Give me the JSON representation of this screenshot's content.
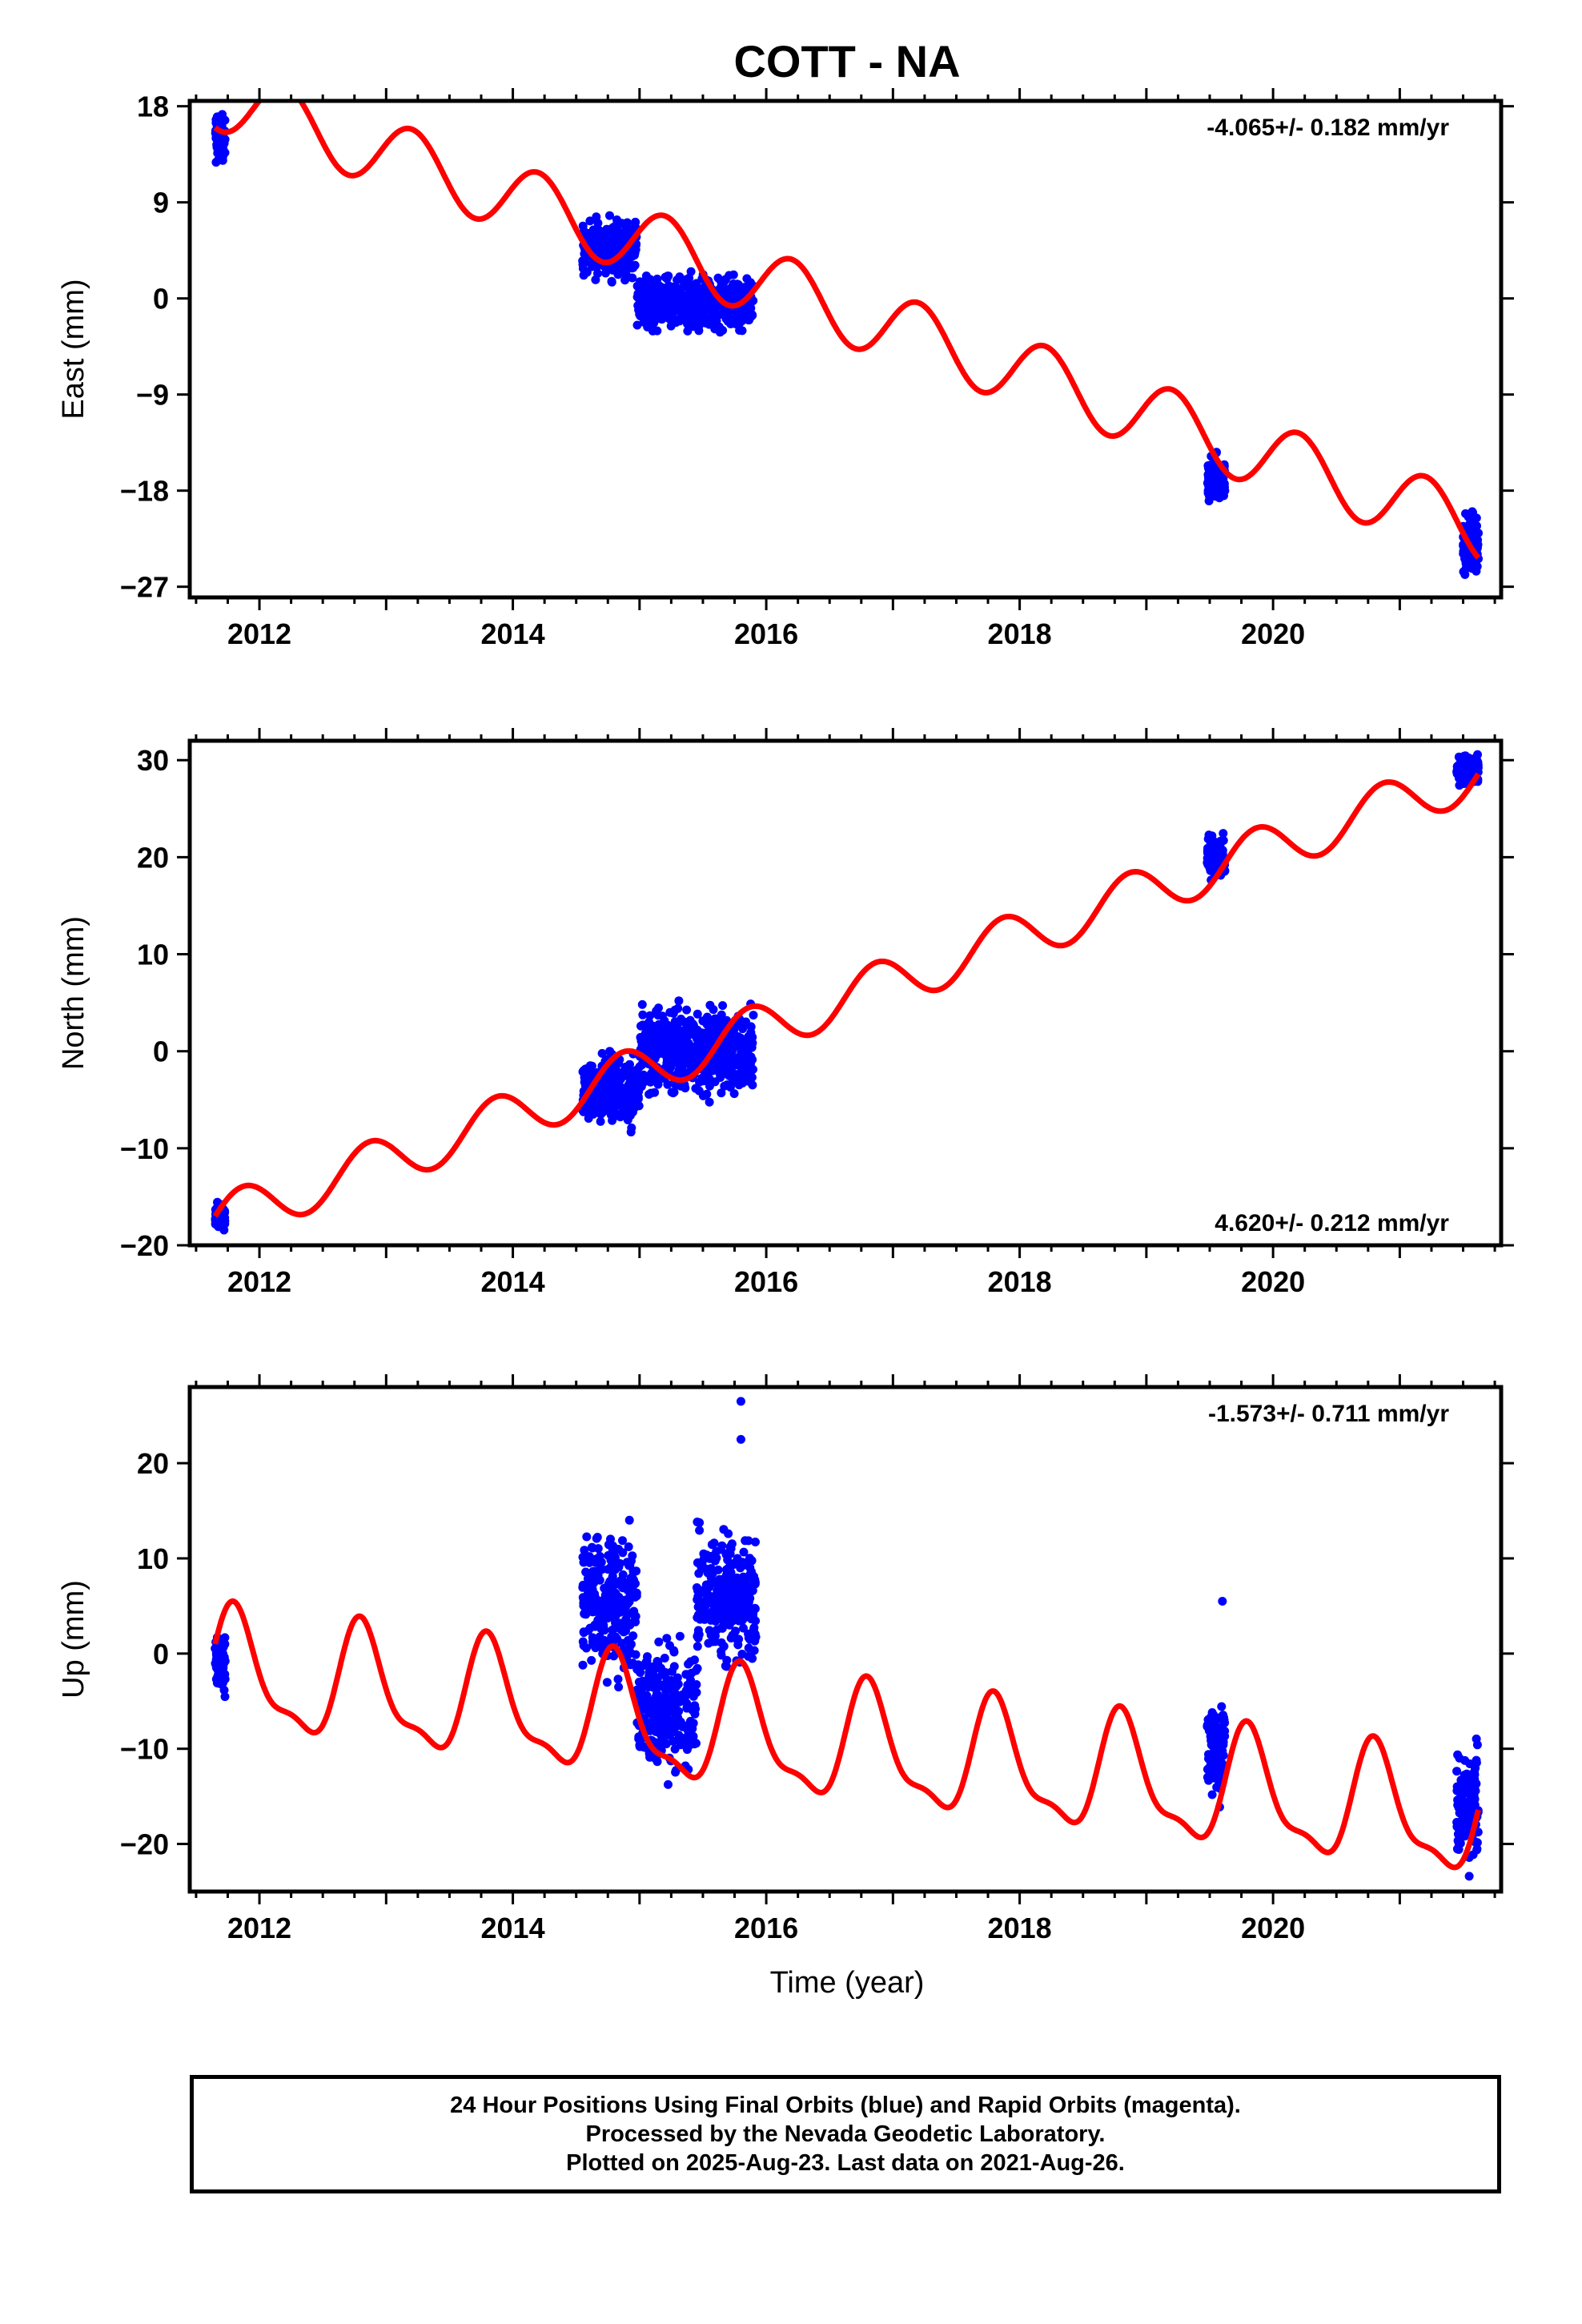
{
  "title": "COTT - NA",
  "xlabel": "Time (year)",
  "footer": {
    "line1": "24 Hour Positions Using Final Orbits (blue) and Rapid Orbits (magenta).",
    "line2": "Processed by the Nevada Geodetic Laboratory.",
    "line3": "Plotted on 2025-Aug-23. Last data on 2021-Aug-26."
  },
  "colors": {
    "points": "#0000ff",
    "model": "#ff0000",
    "axes": "#000000"
  },
  "chart_data": [
    {
      "type": "scatter",
      "id": "east",
      "ylabel": "East (mm)",
      "rate_label": "-4.065+/- 0.182 mm/yr",
      "rate_position": "top-right",
      "xlim": [
        2011.45,
        2021.8
      ],
      "ylim": [
        -28,
        18.5
      ],
      "xticks": [
        2012,
        2014,
        2016,
        2018,
        2020
      ],
      "yticks": [
        18,
        9,
        0,
        -9,
        -18,
        -27
      ],
      "ytick_labels": [
        "18",
        "9",
        "0",
        "−9",
        "−18",
        "−27"
      ],
      "model": {
        "anchor_x": 2011.65,
        "anchor_y": 16.0,
        "rate": -4.065,
        "cos_amp": -3.0,
        "sin_amp": -1.0,
        "cos2_amp": 0,
        "sin2_amp": 0
      },
      "point_clusters": [
        {
          "x": [
            2011.65,
            2011.73
          ],
          "y": [
            12,
            18
          ]
        },
        {
          "x": [
            2014.55,
            2014.98
          ],
          "y": [
            1,
            8.5
          ]
        },
        {
          "x": [
            2014.98,
            2015.9
          ],
          "y": [
            -4,
            3
          ]
        },
        {
          "x": [
            2019.48,
            2019.62
          ],
          "y": [
            -20,
            -14
          ]
        },
        {
          "x": [
            2021.5,
            2021.62
          ],
          "y": [
            -27,
            -19
          ]
        }
      ]
    },
    {
      "type": "scatter",
      "id": "north",
      "ylabel": "North (mm)",
      "rate_label": "4.620+/- 0.212 mm/yr",
      "rate_position": "bottom-right",
      "xlim": [
        2011.45,
        2021.8
      ],
      "ylim": [
        -20,
        32
      ],
      "xticks": [
        2012,
        2014,
        2016,
        2018,
        2020
      ],
      "yticks": [
        30,
        20,
        10,
        0,
        -10,
        -20
      ],
      "ytick_labels": [
        "30",
        "20",
        "10",
        "0",
        "−10",
        "−20"
      ],
      "model": {
        "anchor_x": 2011.65,
        "anchor_y": -17.0,
        "rate": 4.62,
        "cos_amp": 0.5,
        "sin_amp": 2.5,
        "cos2_amp": 0,
        "sin2_amp": 0
      },
      "point_clusters": [
        {
          "x": [
            2011.65,
            2011.73
          ],
          "y": [
            -19,
            -15
          ]
        },
        {
          "x": [
            2014.55,
            2015.0
          ],
          "y": [
            -9,
            1
          ]
        },
        {
          "x": [
            2015.0,
            2015.9
          ],
          "y": [
            -6,
            6
          ]
        },
        {
          "x": [
            2019.48,
            2019.62
          ],
          "y": [
            17,
            23
          ]
        },
        {
          "x": [
            2021.45,
            2021.62
          ],
          "y": [
            27,
            31
          ]
        }
      ]
    },
    {
      "type": "scatter",
      "id": "up",
      "ylabel": "Up (mm)",
      "rate_label": "-1.573+/- 0.711 mm/yr",
      "rate_position": "top-right",
      "xlim": [
        2011.45,
        2021.8
      ],
      "ylim": [
        -25,
        28
      ],
      "xticks": [
        2012,
        2014,
        2016,
        2018,
        2020
      ],
      "yticks": [
        20,
        10,
        0,
        -10,
        -20
      ],
      "ytick_labels": [
        "20",
        "10",
        "0",
        "−10",
        "−20"
      ],
      "model": {
        "anchor_x": 2011.65,
        "anchor_y": 1.0,
        "rate": -1.573,
        "cos_amp": 3.0,
        "sin_amp": 5.0,
        "cos2_amp": 0,
        "sin2_amp": 2.0
      },
      "point_clusters": [
        {
          "x": [
            2011.65,
            2011.73
          ],
          "y": [
            -6,
            4
          ]
        },
        {
          "x": [
            2014.55,
            2014.98
          ],
          "y": [
            -5,
            16
          ]
        },
        {
          "x": [
            2014.98,
            2015.45
          ],
          "y": [
            -15,
            3
          ]
        },
        {
          "x": [
            2015.45,
            2015.92
          ],
          "y": [
            -3,
            15
          ]
        },
        {
          "x": [
            2019.48,
            2019.62
          ],
          "y": [
            -16.5,
            -4
          ]
        },
        {
          "x": [
            2021.45,
            2021.62
          ],
          "y": [
            -24,
            -8
          ]
        }
      ],
      "outliers": [
        {
          "x": 2015.8,
          "y": 26.5
        },
        {
          "x": 2015.8,
          "y": 22.5
        },
        {
          "x": 2019.6,
          "y": 5.5
        }
      ]
    }
  ]
}
